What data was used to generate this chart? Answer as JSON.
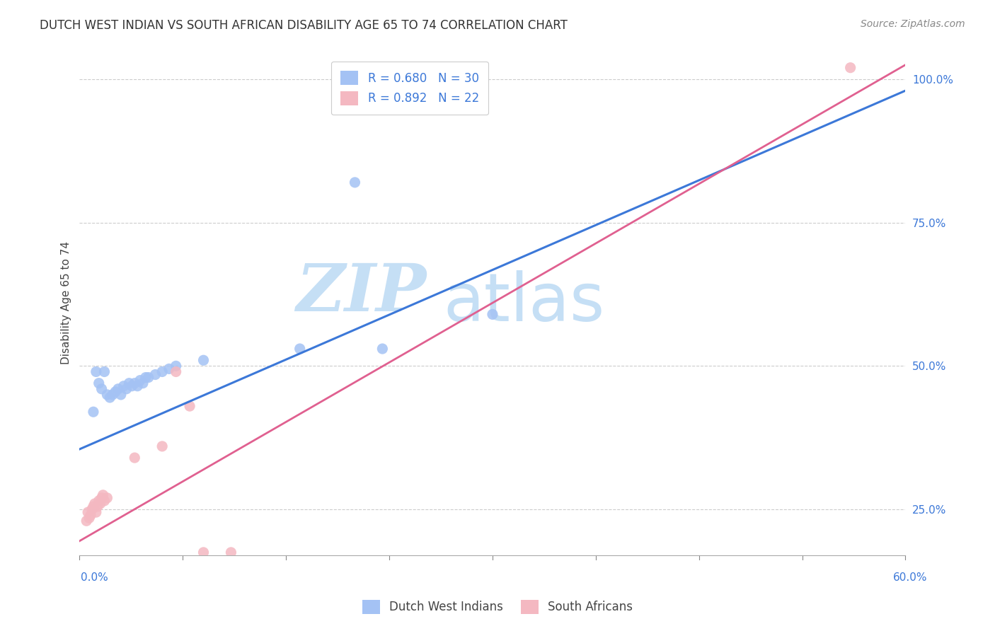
{
  "title": "DUTCH WEST INDIAN VS SOUTH AFRICAN DISABILITY AGE 65 TO 74 CORRELATION CHART",
  "source": "Source: ZipAtlas.com",
  "ylabel": "Disability Age 65 to 74",
  "xlim": [
    0.0,
    0.6
  ],
  "ylim": [
    0.17,
    1.05
  ],
  "yticks": [
    0.25,
    0.5,
    0.75,
    1.0
  ],
  "ytick_labels": [
    "25.0%",
    "50.0%",
    "75.0%",
    "100.0%"
  ],
  "blue_R": 0.68,
  "blue_N": 30,
  "pink_R": 0.892,
  "pink_N": 22,
  "blue_color": "#a4c2f4",
  "pink_color": "#f4b8c1",
  "blue_line_color": "#3c78d8",
  "pink_line_color": "#e06090",
  "legend_label_blue": "Dutch West Indians",
  "legend_label_pink": "South Africans",
  "blue_dots": [
    [
      0.01,
      0.42
    ],
    [
      0.012,
      0.49
    ],
    [
      0.014,
      0.47
    ],
    [
      0.016,
      0.46
    ],
    [
      0.018,
      0.49
    ],
    [
      0.02,
      0.45
    ],
    [
      0.022,
      0.445
    ],
    [
      0.024,
      0.45
    ],
    [
      0.026,
      0.455
    ],
    [
      0.028,
      0.46
    ],
    [
      0.03,
      0.45
    ],
    [
      0.032,
      0.465
    ],
    [
      0.034,
      0.46
    ],
    [
      0.036,
      0.47
    ],
    [
      0.038,
      0.465
    ],
    [
      0.04,
      0.47
    ],
    [
      0.042,
      0.465
    ],
    [
      0.044,
      0.475
    ],
    [
      0.046,
      0.47
    ],
    [
      0.048,
      0.48
    ],
    [
      0.05,
      0.48
    ],
    [
      0.055,
      0.485
    ],
    [
      0.06,
      0.49
    ],
    [
      0.065,
      0.495
    ],
    [
      0.07,
      0.5
    ],
    [
      0.09,
      0.51
    ],
    [
      0.16,
      0.53
    ],
    [
      0.2,
      0.82
    ],
    [
      0.22,
      0.53
    ],
    [
      0.3,
      0.59
    ]
  ],
  "pink_dots": [
    [
      0.005,
      0.23
    ],
    [
      0.006,
      0.245
    ],
    [
      0.007,
      0.235
    ],
    [
      0.008,
      0.24
    ],
    [
      0.009,
      0.25
    ],
    [
      0.01,
      0.255
    ],
    [
      0.011,
      0.26
    ],
    [
      0.012,
      0.245
    ],
    [
      0.013,
      0.255
    ],
    [
      0.014,
      0.265
    ],
    [
      0.015,
      0.26
    ],
    [
      0.016,
      0.27
    ],
    [
      0.017,
      0.275
    ],
    [
      0.018,
      0.265
    ],
    [
      0.02,
      0.27
    ],
    [
      0.04,
      0.34
    ],
    [
      0.06,
      0.36
    ],
    [
      0.07,
      0.49
    ],
    [
      0.08,
      0.43
    ],
    [
      0.09,
      0.175
    ],
    [
      0.11,
      0.175
    ],
    [
      0.56,
      1.02
    ]
  ],
  "background_color": "#ffffff",
  "grid_color": "#cccccc",
  "watermark_zip_color": "#c5dff5",
  "watermark_atlas_color": "#c5dff5",
  "title_fontsize": 12,
  "axis_label_fontsize": 11,
  "tick_fontsize": 11,
  "source_fontsize": 10,
  "legend_fontsize": 12
}
